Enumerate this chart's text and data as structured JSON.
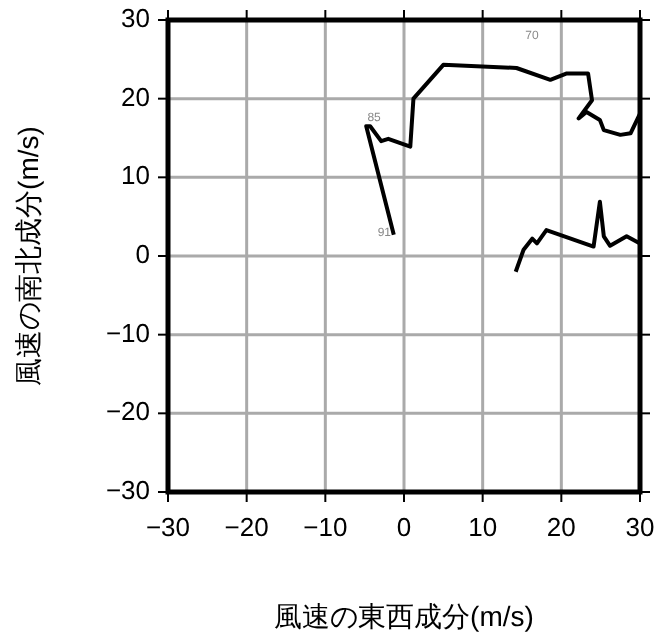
{
  "chart_data": {
    "type": "line",
    "xlabel": "風速の東西成分(m/s)",
    "ylabel": "風速の南北成分(m/s)",
    "xlim": [
      -30,
      30
    ],
    "ylim": [
      -30,
      30
    ],
    "xticks": [
      -30,
      -20,
      -10,
      0,
      10,
      20,
      30
    ],
    "yticks": [
      -30,
      -20,
      -10,
      0,
      10,
      20,
      30
    ],
    "grid": true,
    "series": [
      {
        "color": "#000000",
        "x": [
          -1.3,
          -4.8,
          -4.3,
          -2.9,
          -2.0,
          0.8,
          1.2,
          5.0,
          14.3,
          18.6,
          20.7,
          23.4,
          23.9,
          22.2,
          23.2,
          24.9,
          25.4,
          27.5,
          28.8,
          30.0
        ],
        "values": [
          2.7,
          16.5,
          16.5,
          14.6,
          14.9,
          13.9,
          20.0,
          24.3,
          23.9,
          22.4,
          23.2,
          23.2,
          19.8,
          17.5,
          18.3,
          17.3,
          16.0,
          15.4,
          15.6,
          18.1
        ]
      },
      {
        "color": "#000000",
        "x": [
          14.2,
          15.2,
          16.3,
          16.9,
          18.1,
          24.1,
          24.9,
          25.4,
          26.2,
          28.3,
          30.0
        ],
        "values": [
          -2.0,
          0.8,
          2.2,
          1.6,
          3.3,
          1.2,
          6.9,
          2.5,
          1.3,
          2.5,
          1.6
        ]
      }
    ],
    "annotations": [
      "70",
      {
        "text": "85",
        "x": -3.8,
        "y": 17.6
      },
      {
        "text": "91",
        "x": -2.5,
        "y": 3.0
      }
    ]
  }
}
